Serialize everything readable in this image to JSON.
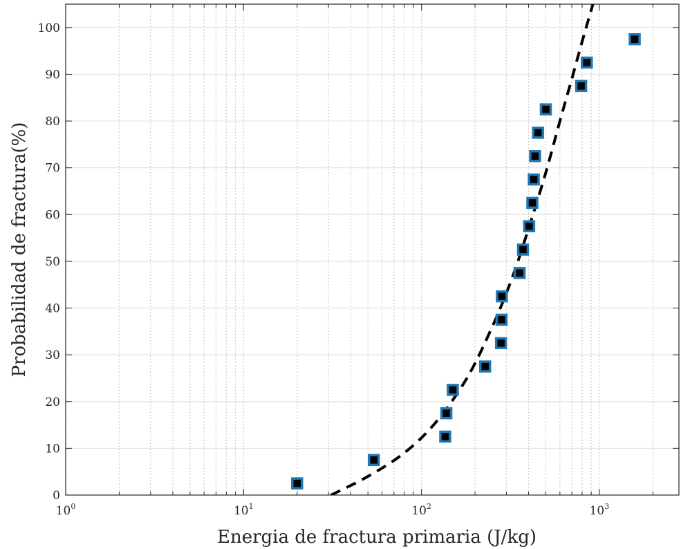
{
  "chart_data": {
    "type": "scatter",
    "title": "",
    "xlabel": "Energia de fractura primaria (J/kg)",
    "ylabel": "Probabilidad de fractura(%)",
    "xscale": "log",
    "xlim": [
      1,
      2800
    ],
    "ylim": [
      0,
      105
    ],
    "grid": "on",
    "x_ticks": [
      {
        "value": 1,
        "base": "10",
        "exp": "0"
      },
      {
        "value": 10,
        "base": "10",
        "exp": "1"
      },
      {
        "value": 100,
        "base": "10",
        "exp": "2"
      },
      {
        "value": 1000,
        "base": "10",
        "exp": "3"
      }
    ],
    "y_ticks": [
      0,
      10,
      20,
      30,
      40,
      50,
      60,
      70,
      80,
      90,
      100
    ],
    "series": [
      {
        "kind": "markers",
        "marker": "square",
        "color": "#1f77b4",
        "fill": "#000000",
        "points": [
          {
            "x": 20,
            "y": 2.5
          },
          {
            "x": 54,
            "y": 7.5
          },
          {
            "x": 136,
            "y": 12.5
          },
          {
            "x": 138,
            "y": 17.5
          },
          {
            "x": 150,
            "y": 22.5
          },
          {
            "x": 228,
            "y": 27.5
          },
          {
            "x": 280,
            "y": 32.5
          },
          {
            "x": 282,
            "y": 37.5
          },
          {
            "x": 283,
            "y": 42.5
          },
          {
            "x": 356,
            "y": 47.5
          },
          {
            "x": 372,
            "y": 52.5
          },
          {
            "x": 403,
            "y": 57.5
          },
          {
            "x": 420,
            "y": 62.5
          },
          {
            "x": 428,
            "y": 67.5
          },
          {
            "x": 435,
            "y": 72.5
          },
          {
            "x": 452,
            "y": 77.5
          },
          {
            "x": 500,
            "y": 82.5
          },
          {
            "x": 790,
            "y": 87.5
          },
          {
            "x": 850,
            "y": 92.5
          },
          {
            "x": 1580,
            "y": 97.5
          }
        ]
      },
      {
        "kind": "fit-line",
        "style": "dashed",
        "color": "#000000",
        "points": [
          {
            "x": 31,
            "y": 0
          },
          {
            "x": 50,
            "y": 4
          },
          {
            "x": 80,
            "y": 9
          },
          {
            "x": 120,
            "y": 15.5
          },
          {
            "x": 180,
            "y": 25
          },
          {
            "x": 250,
            "y": 36
          },
          {
            "x": 320,
            "y": 46
          },
          {
            "x": 400,
            "y": 57
          },
          {
            "x": 500,
            "y": 69
          },
          {
            "x": 600,
            "y": 80
          },
          {
            "x": 700,
            "y": 89
          },
          {
            "x": 800,
            "y": 97
          },
          {
            "x": 920,
            "y": 105
          }
        ]
      }
    ]
  }
}
